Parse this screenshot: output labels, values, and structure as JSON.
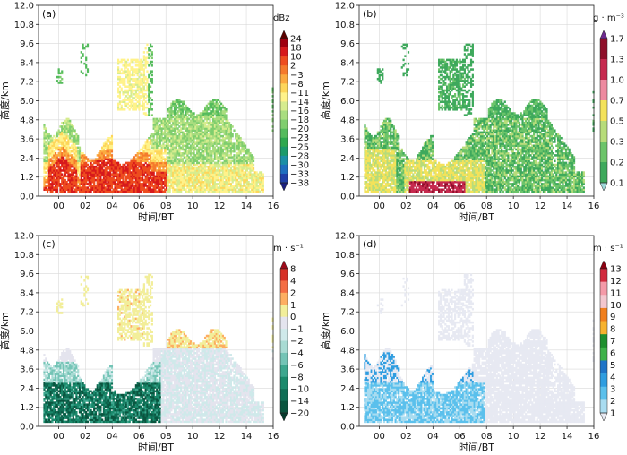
{
  "chart_data": [
    {
      "type": "heatmap",
      "panel_label": "(a)",
      "xlabel": "时间/BT",
      "ylabel": "高度/km",
      "x_ticks": [
        "00",
        "02",
        "04",
        "06",
        "08",
        "10",
        "12",
        "14",
        "16"
      ],
      "y_ticks": [
        "0.0",
        "1.2",
        "2.4",
        "3.6",
        "4.8",
        "6.0",
        "7.2",
        "8.4",
        "9.6",
        "10.8",
        "12.0"
      ],
      "ylim": [
        0,
        12
      ],
      "colorbar": {
        "unit": "dBz",
        "levels": [
          "24",
          "18",
          "10",
          "2",
          "−3",
          "−8",
          "−11",
          "−14",
          "−16",
          "−18",
          "−20",
          "−23",
          "−25",
          "−28",
          "−30",
          "−33",
          "−38"
        ],
        "colors": [
          "#5a0000",
          "#a00010",
          "#d7191c",
          "#ee4d1f",
          "#f57a2c",
          "#fbaa40",
          "#fdd65a",
          "#fff28a",
          "#d6ec8e",
          "#a9dd7f",
          "#7fce6e",
          "#54bb5c",
          "#2ea84e",
          "#1b9a6a",
          "#1b8fa6",
          "#1f6fbf",
          "#2040a8",
          "#1a1f80"
        ]
      }
    },
    {
      "type": "heatmap",
      "panel_label": "(b)",
      "xlabel": "时间/BT",
      "ylabel": "高度/km",
      "x_ticks": [
        "00",
        "02",
        "04",
        "06",
        "08",
        "10",
        "12",
        "14",
        "16"
      ],
      "y_ticks": [
        "0.0",
        "1.2",
        "2.4",
        "3.6",
        "4.8",
        "6.0",
        "7.2",
        "8.4",
        "9.6",
        "10.8",
        "12.0"
      ],
      "ylim": [
        0,
        12
      ],
      "colorbar": {
        "unit": "g · m⁻³",
        "levels": [
          "1.7",
          "1.3",
          "1.0",
          "0.7",
          "0.5",
          "0.3",
          "0.2",
          "0.1"
        ],
        "colors": [
          "#6e2a8f",
          "#8e0f2a",
          "#c62a4f",
          "#ee8aa0",
          "#f3e25a",
          "#b7dc7a",
          "#6cc46a",
          "#3ea95c",
          "#9fd8d9"
        ]
      }
    },
    {
      "type": "heatmap",
      "panel_label": "(c)",
      "xlabel": "时间/BT",
      "ylabel": "高度/km",
      "x_ticks": [
        "00",
        "02",
        "04",
        "06",
        "08",
        "10",
        "12",
        "14",
        "16"
      ],
      "y_ticks": [
        "0.0",
        "1.2",
        "2.4",
        "3.6",
        "4.8",
        "6.0",
        "7.2",
        "8.4",
        "9.6",
        "10.8",
        "12.0"
      ],
      "ylim": [
        0,
        12
      ],
      "colorbar": {
        "unit": "m · s⁻¹",
        "levels": [
          "8",
          "4",
          "2",
          "1",
          "0",
          "−1",
          "−2",
          "−4",
          "−6",
          "−8",
          "−10",
          "−14",
          "−20"
        ],
        "colors": [
          "#9e0a1a",
          "#d73027",
          "#f46d43",
          "#fdae61",
          "#f2ee9a",
          "#e4e4ee",
          "#cfe9ea",
          "#a8dbd3",
          "#74c4b6",
          "#3ea78f",
          "#1b8a6c",
          "#0f6e55",
          "#0a553f",
          "#053a2c"
        ]
      }
    },
    {
      "type": "heatmap",
      "panel_label": "(d)",
      "xlabel": "时间/BT",
      "ylabel": "高度/km",
      "x_ticks": [
        "00",
        "02",
        "04",
        "06",
        "08",
        "10",
        "12",
        "14",
        "16"
      ],
      "y_ticks": [
        "0.0",
        "1.2",
        "2.4",
        "3.6",
        "4.8",
        "6.0",
        "7.2",
        "8.4",
        "9.6",
        "10.8",
        "12.0"
      ],
      "ylim": [
        0,
        12
      ],
      "colorbar": {
        "unit": "m · s⁻¹",
        "levels": [
          "13",
          "12",
          "11",
          "10",
          "9",
          "8",
          "7",
          "6",
          "5",
          "4",
          "3",
          "2",
          "1"
        ],
        "colors": [
          "#8b0012",
          "#d12a3d",
          "#f49aa8",
          "#f3c7cf",
          "#f07f1e",
          "#f7b22e",
          "#1f8f2e",
          "#3fb24a",
          "#1f74c7",
          "#2f9de0",
          "#5bc0ec",
          "#a9dcf0",
          "#e7e9f2"
        ]
      }
    }
  ]
}
